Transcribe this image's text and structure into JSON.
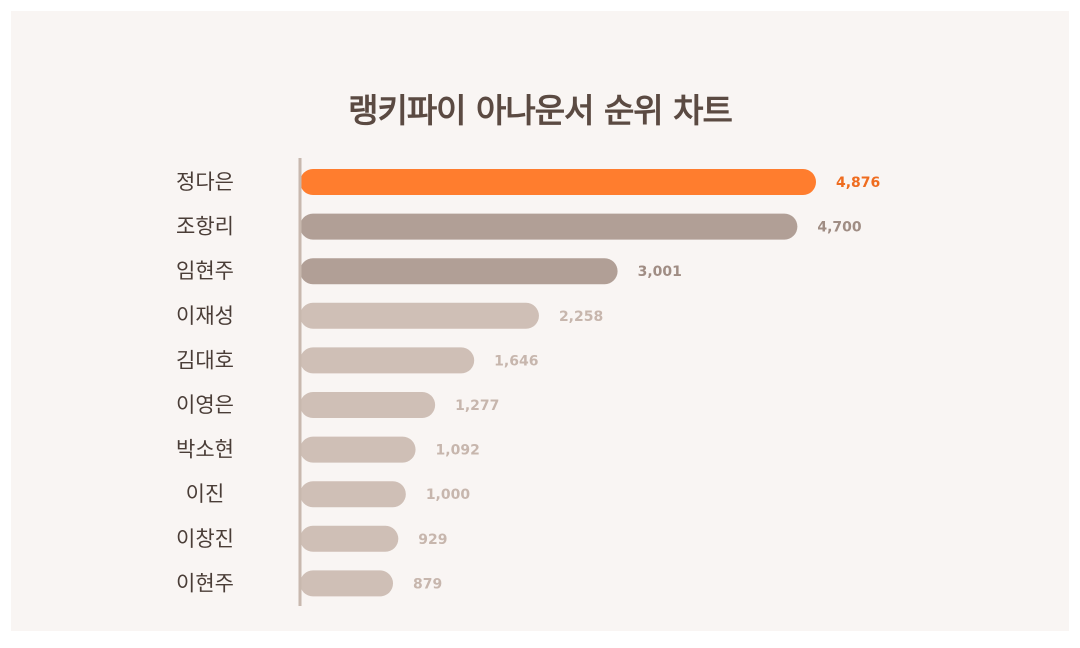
{
  "chart_data": {
    "type": "bar",
    "orientation": "horizontal",
    "title": "랭키파이 아나운서 순위 차트",
    "categories": [
      "정다은",
      "조항리",
      "임현주",
      "이재성",
      "김대호",
      "이영은",
      "박소현",
      "이진",
      "이창진",
      "이현주"
    ],
    "values": [
      4876,
      4700,
      3001,
      2258,
      1646,
      1277,
      1092,
      1000,
      929,
      879
    ],
    "value_labels": [
      "4,876",
      "4,700",
      "3,001",
      "2,258",
      "1,646",
      "1,277",
      "1,092",
      "1,000",
      "929",
      "879"
    ],
    "xlim": [
      0,
      4876
    ],
    "grid": false,
    "colors": {
      "highlight": "#ff7d2e",
      "highlight_label": "#ef6c1f",
      "tier2": "#b19f96",
      "tier2_label": "#a08d84",
      "tier3": "#cfbfb6",
      "tier3_label": "#c7b6ad",
      "axis": "#c8b8ae",
      "background": "#f9f5f3"
    },
    "bar_tiers": [
      "highlight",
      "tier2",
      "tier2",
      "tier3",
      "tier3",
      "tier3",
      "tier3",
      "tier3",
      "tier3",
      "tier3"
    ]
  }
}
